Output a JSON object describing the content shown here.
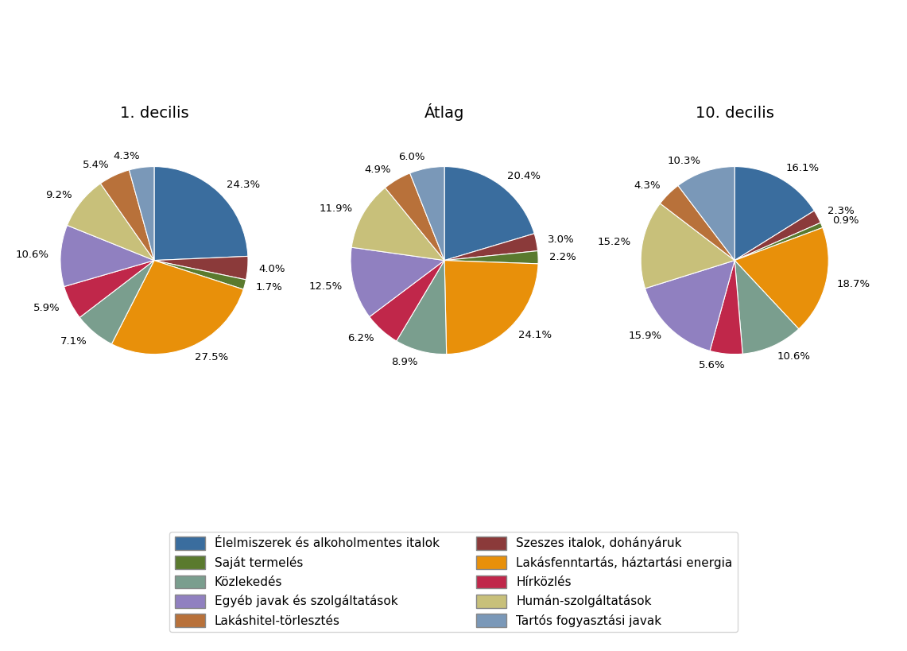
{
  "chart_data": [
    {
      "type": "pie",
      "title": "1. decilis",
      "categories": [
        "Élelmiszerek és alkoholmentes italok",
        "Szeszes italok, dohányáruk",
        "Saját termelés",
        "Lakásfenntartás, háztartási energia",
        "Közlekedés",
        "Hírközlés",
        "Egyéb javak és szolgáltatások",
        "Humán-szolgáltatások",
        "Lakáshitel-törlesztés",
        "Tartós fogyasztási javak"
      ],
      "values": [
        24.3,
        4.0,
        1.7,
        27.5,
        7.1,
        5.9,
        10.6,
        9.2,
        5.4,
        4.3
      ],
      "value_labels": [
        "24.3%",
        "4.0%",
        "1.7%",
        "27.5%",
        "7.1%",
        "5.9%",
        "10.6%",
        "9.2%",
        "5.4%",
        "4.3%"
      ],
      "colors": [
        "#3a6d9e",
        "#8b3a3a",
        "#5a7a2e",
        "#e8900a",
        "#7a9e8e",
        "#c0274a",
        "#9080c0",
        "#c8c07a",
        "#b8713a",
        "#7a98b8"
      ],
      "data_labels": true,
      "legend": "lower center"
    },
    {
      "type": "pie",
      "title": "Átlag",
      "categories": [
        "Élelmiszerek és alkoholmentes italok",
        "Szeszes italok, dohányáruk",
        "Saját termelés",
        "Lakásfenntartás, háztartási energia",
        "Közlekedés",
        "Hírközlés",
        "Egyéb javak és szolgáltatások",
        "Humán-szolgáltatások",
        "Lakáshitel-törlesztés",
        "Tartós fogyasztási javak"
      ],
      "values": [
        20.4,
        3.0,
        2.2,
        24.1,
        8.9,
        6.2,
        12.5,
        11.9,
        4.9,
        6.0
      ],
      "value_labels": [
        "20.4%",
        "3.0%",
        "2.2%",
        "24.1%",
        "8.9%",
        "6.2%",
        "12.5%",
        "11.9%",
        "4.9%",
        "6.0%"
      ],
      "colors": [
        "#3a6d9e",
        "#8b3a3a",
        "#5a7a2e",
        "#e8900a",
        "#7a9e8e",
        "#c0274a",
        "#9080c0",
        "#c8c07a",
        "#b8713a",
        "#7a98b8"
      ],
      "data_labels": true
    },
    {
      "type": "pie",
      "title": "10. decilis",
      "categories": [
        "Élelmiszerek és alkoholmentes italok",
        "Szeszes italok, dohányáruk",
        "Saját termelés",
        "Lakásfenntartás, háztartási energia",
        "Közlekedés",
        "Hírközlés",
        "Egyéb javak és szolgáltatások",
        "Humán-szolgáltatások",
        "Lakáshitel-törlesztés",
        "Tartós fogyasztási javak"
      ],
      "values": [
        16.1,
        2.3,
        0.9,
        18.7,
        10.6,
        5.6,
        15.9,
        15.2,
        4.3,
        10.3
      ],
      "value_labels": [
        "16.1%",
        "2.3%",
        "0.9%",
        "18.7%",
        "10.6%",
        "5.6%",
        "15.9%",
        "15.2%",
        "4.3%",
        "10.3%"
      ],
      "colors": [
        "#3a6d9e",
        "#8b3a3a",
        "#5a7a2e",
        "#e8900a",
        "#7a9e8e",
        "#c0274a",
        "#9080c0",
        "#c8c07a",
        "#b8713a",
        "#7a98b8"
      ],
      "data_labels": true
    }
  ]
}
